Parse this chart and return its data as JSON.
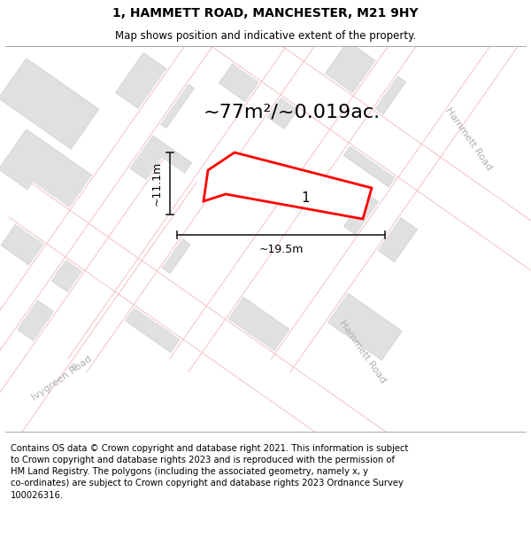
{
  "title": "1, HAMMETT ROAD, MANCHESTER, M21 9HY",
  "subtitle": "Map shows position and indicative extent of the property.",
  "footer_text": "Contains OS data © Crown copyright and database right 2021. This information is subject\nto Crown copyright and database rights 2023 and is reproduced with the permission of\nHM Land Registry. The polygons (including the associated geometry, namely x, y\nco-ordinates) are subject to Crown copyright and database rights 2023 Ordnance Survey\n100026316.",
  "area_label": "~77m²/~0.019ac.",
  "width_label": "~19.5m",
  "height_label": "~11.1m",
  "plot_number": "1",
  "map_bg": "#efefef",
  "block_color": "#e0e0e0",
  "block_outline": "#cccccc",
  "road_color": "#ffffff",
  "road_inner_color": "#f5c8c8",
  "property_fill": "#ffffff",
  "property_outline": "#ff0000",
  "dim_line_color": "#222222",
  "road_label_color": "#b0b0b0",
  "road_label_size": 8,
  "title_fontsize": 10,
  "subtitle_fontsize": 8.5,
  "area_fontsize": 16,
  "plot_number_fontsize": 11,
  "footer_fontsize": 7.2,
  "fig_width": 6.0,
  "fig_height": 6.25,
  "dpi": 100
}
